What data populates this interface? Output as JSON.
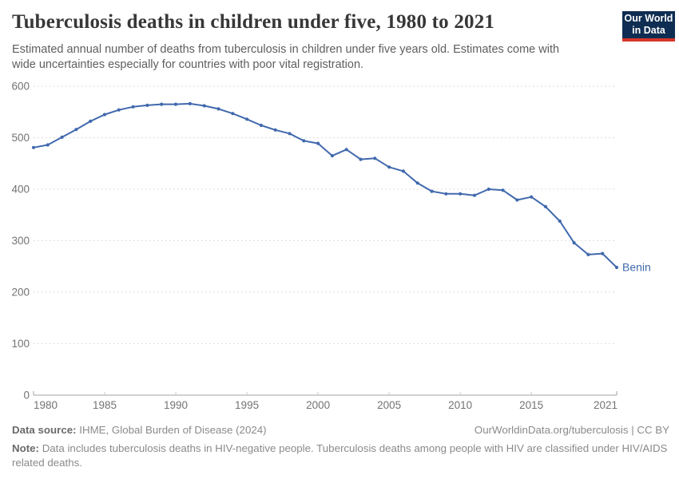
{
  "header": {
    "title": "Tuberculosis deaths in children under five, 1980 to 2021",
    "subtitle": "Estimated annual number of deaths from tuberculosis in children under five years old. Estimates come with wide uncertainties especially for countries with poor vital registration.",
    "logo": {
      "line1": "Our World",
      "line2": "in Data"
    }
  },
  "chart_data": {
    "type": "line",
    "title": "Tuberculosis deaths in children under five, 1980 to 2021",
    "xlabel": "",
    "ylabel": "",
    "xlim": [
      1980,
      2021
    ],
    "ylim": [
      0,
      600
    ],
    "grid": "horizontal-dashed",
    "legend_position": "end-of-line-label",
    "x_ticks": [
      1980,
      1985,
      1990,
      1995,
      2000,
      2005,
      2010,
      2015,
      2021
    ],
    "y_ticks": [
      0,
      100,
      200,
      300,
      400,
      500,
      600
    ],
    "series": [
      {
        "name": "Benin",
        "color": "#4169ad",
        "x": [
          1980,
          1981,
          1982,
          1983,
          1984,
          1985,
          1986,
          1987,
          1988,
          1989,
          1990,
          1991,
          1992,
          1993,
          1994,
          1995,
          1996,
          1997,
          1998,
          1999,
          2000,
          2001,
          2002,
          2003,
          2004,
          2005,
          2006,
          2007,
          2008,
          2009,
          2010,
          2011,
          2012,
          2013,
          2014,
          2015,
          2016,
          2017,
          2018,
          2019,
          2020,
          2021
        ],
        "values": [
          481,
          486,
          501,
          516,
          532,
          545,
          554,
          560,
          563,
          565,
          565,
          566,
          562,
          556,
          547,
          536,
          524,
          515,
          508,
          494,
          489,
          465,
          477,
          458,
          460,
          443,
          435,
          412,
          396,
          391,
          391,
          388,
          400,
          398,
          379,
          385,
          366,
          338,
          296,
          273,
          275,
          248
        ]
      }
    ]
  },
  "footer": {
    "source_label": "Data source:",
    "source_text": "IHME, Global Burden of Disease (2024)",
    "link_text": "OurWorldinData.org/tuberculosis | CC BY",
    "note_label": "Note:",
    "note_text": "Data includes tuberculosis deaths in HIV-negative people. Tuberculosis deaths among people with HIV are classified under HIV/AIDS related deaths."
  },
  "colors": {
    "line": "#4169ad",
    "entity_label": "#4169ad",
    "grid": "#dedede",
    "axis": "#a3a3a3",
    "tick": "#c9c9c9",
    "axis_text": "#737373",
    "logo_navy": "#0f2d52",
    "logo_red": "#d8352a"
  }
}
